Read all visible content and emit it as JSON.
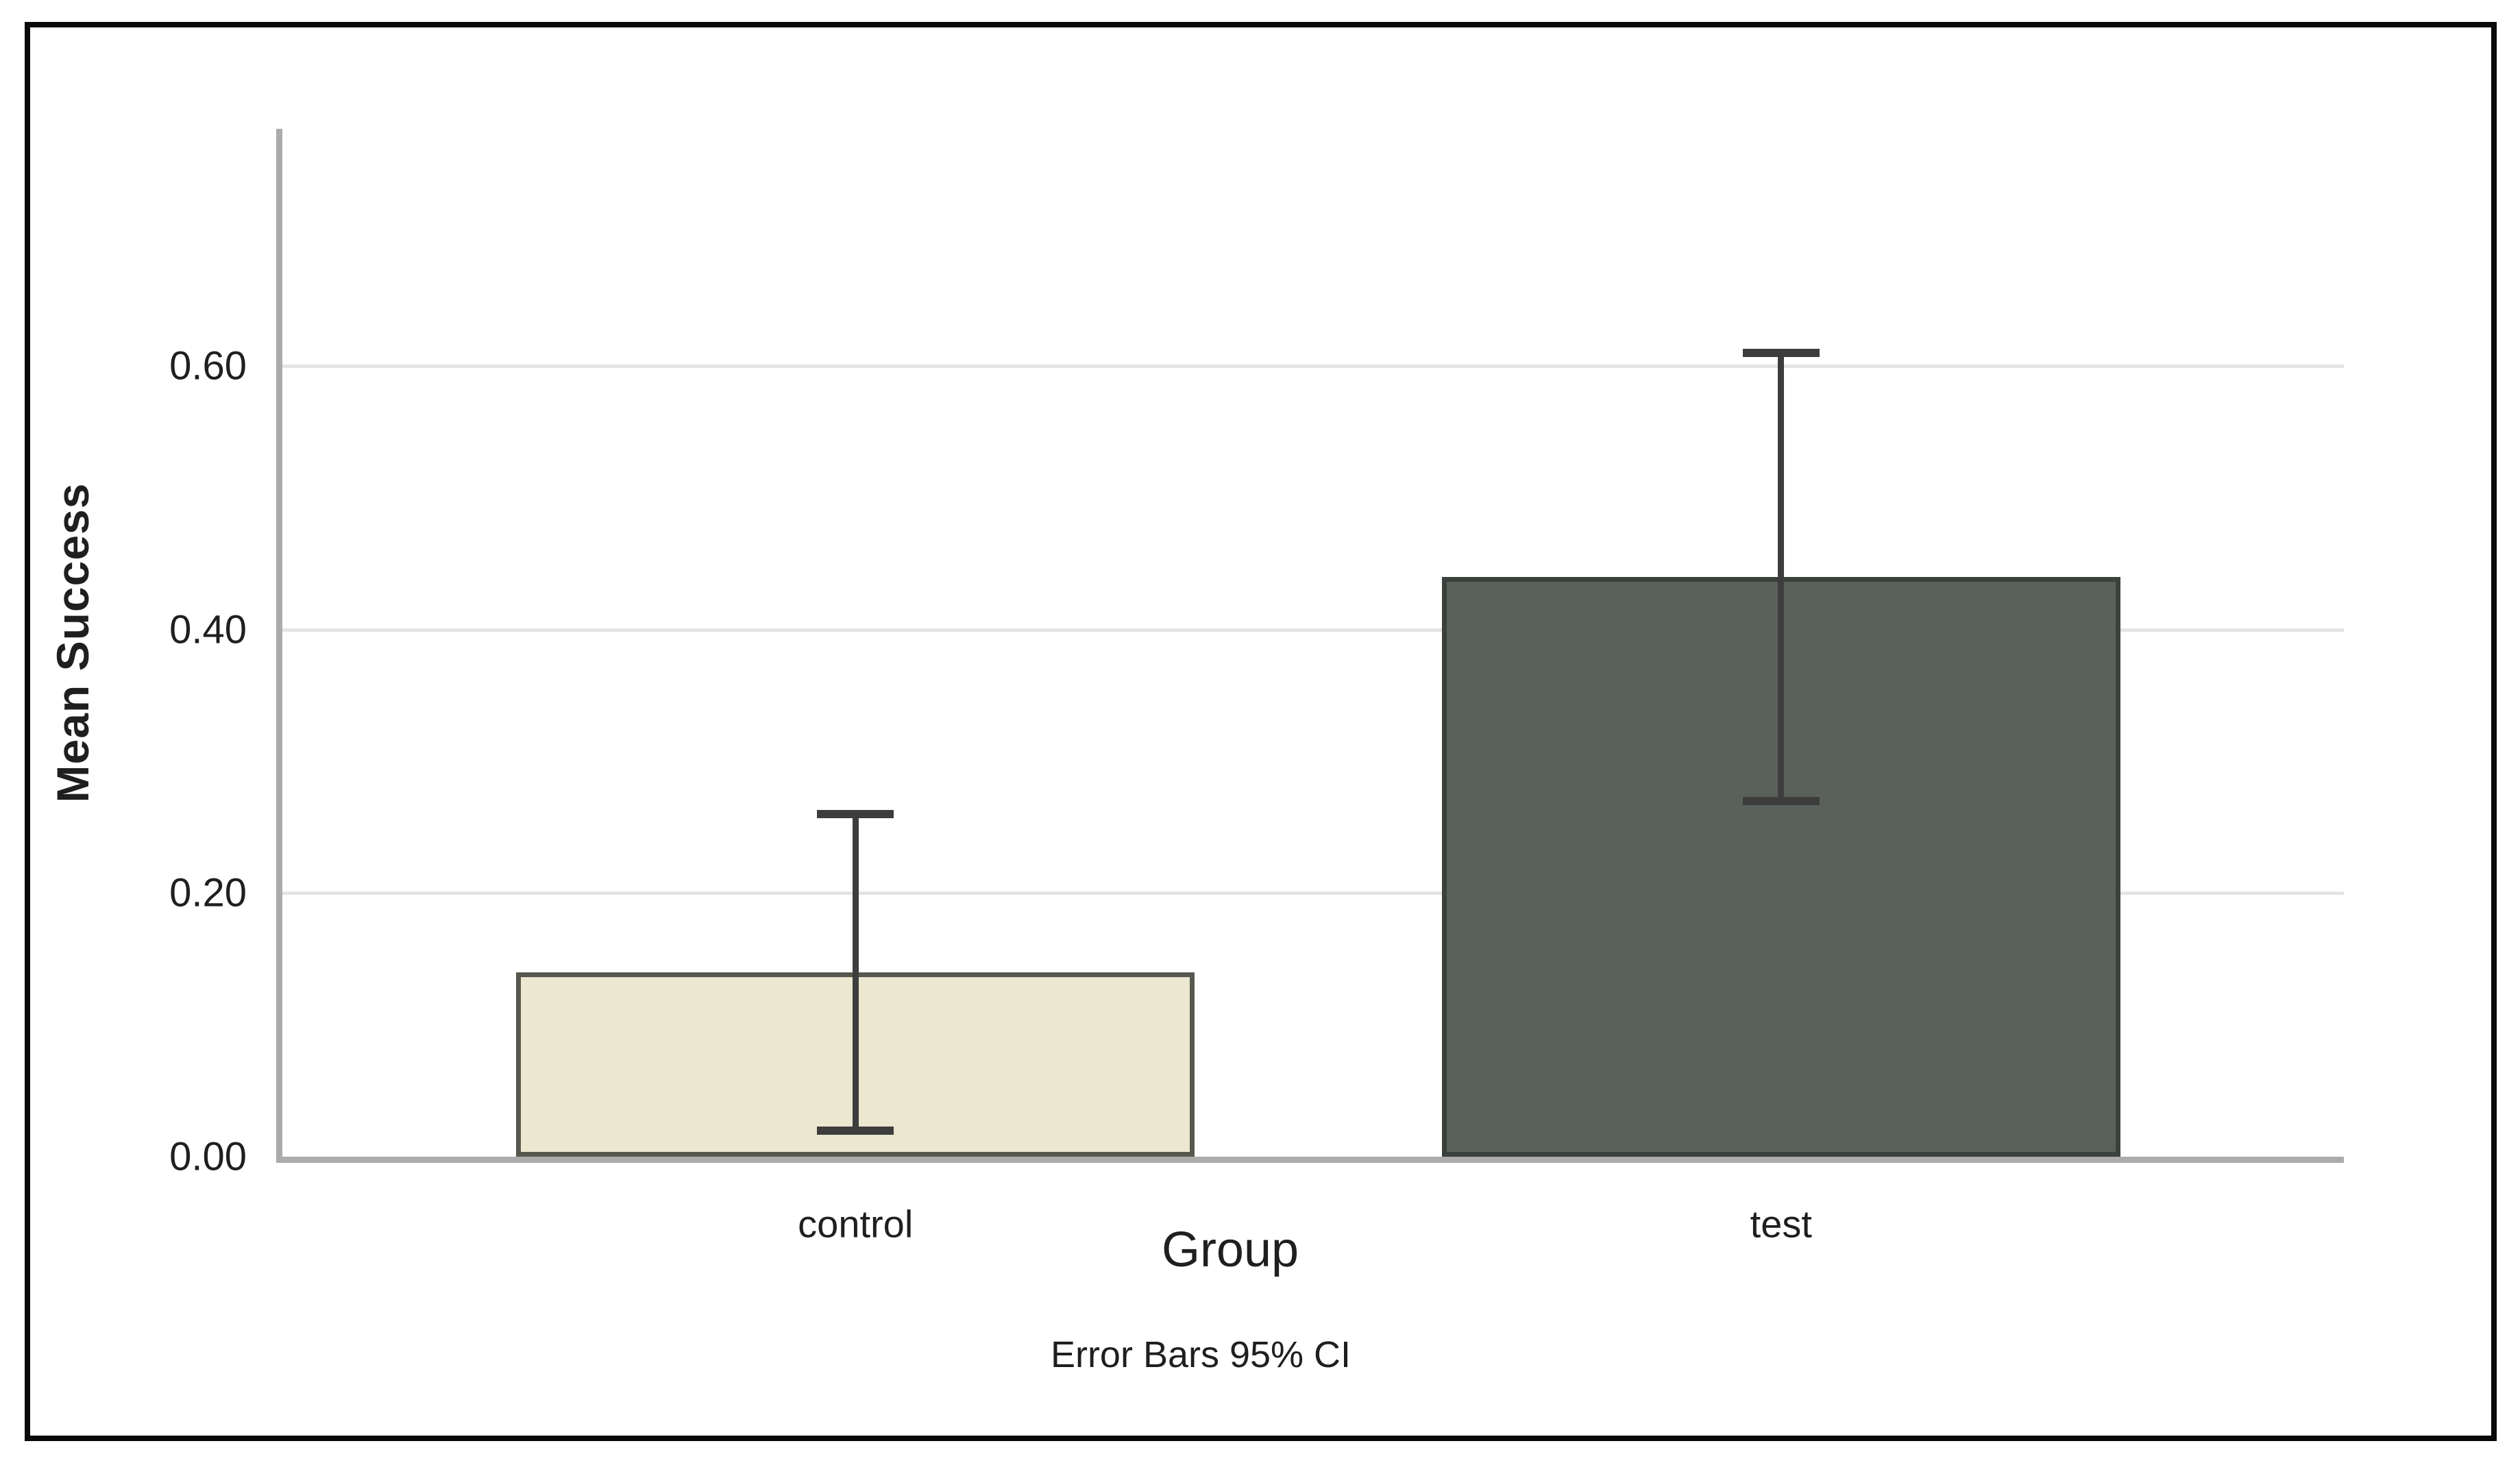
{
  "figure": {
    "background": "#ffffff",
    "frame_color": "#0a0a0a"
  },
  "chart_data": {
    "type": "bar",
    "title": "",
    "xlabel": "Group",
    "ylabel": "Mean Success",
    "footnote": "Error Bars 95% CI",
    "categories": [
      "control",
      "test"
    ],
    "series": [
      {
        "name": "Mean Success",
        "values": [
          0.14,
          0.44
        ],
        "ci_low": [
          0.02,
          0.27
        ],
        "ci_high": [
          0.26,
          0.61
        ]
      }
    ],
    "ylim": [
      0,
      0.78
    ],
    "yticks": [
      0,
      0.2,
      0.4,
      0.6
    ],
    "ytick_labels": [
      "0.00",
      "0.20",
      "0.40",
      "0.60"
    ],
    "grid": "horizontal",
    "legend": "none",
    "colors": {
      "bar_fills": [
        "#ece7d0",
        "#5a615b"
      ],
      "bar_borders": [
        "#56584e",
        "#3a403b"
      ],
      "error_bar": "#3d3d3d",
      "gridline": "#e4e4e4",
      "axis_line": "#ababab",
      "text": "#1f1f1f"
    }
  }
}
